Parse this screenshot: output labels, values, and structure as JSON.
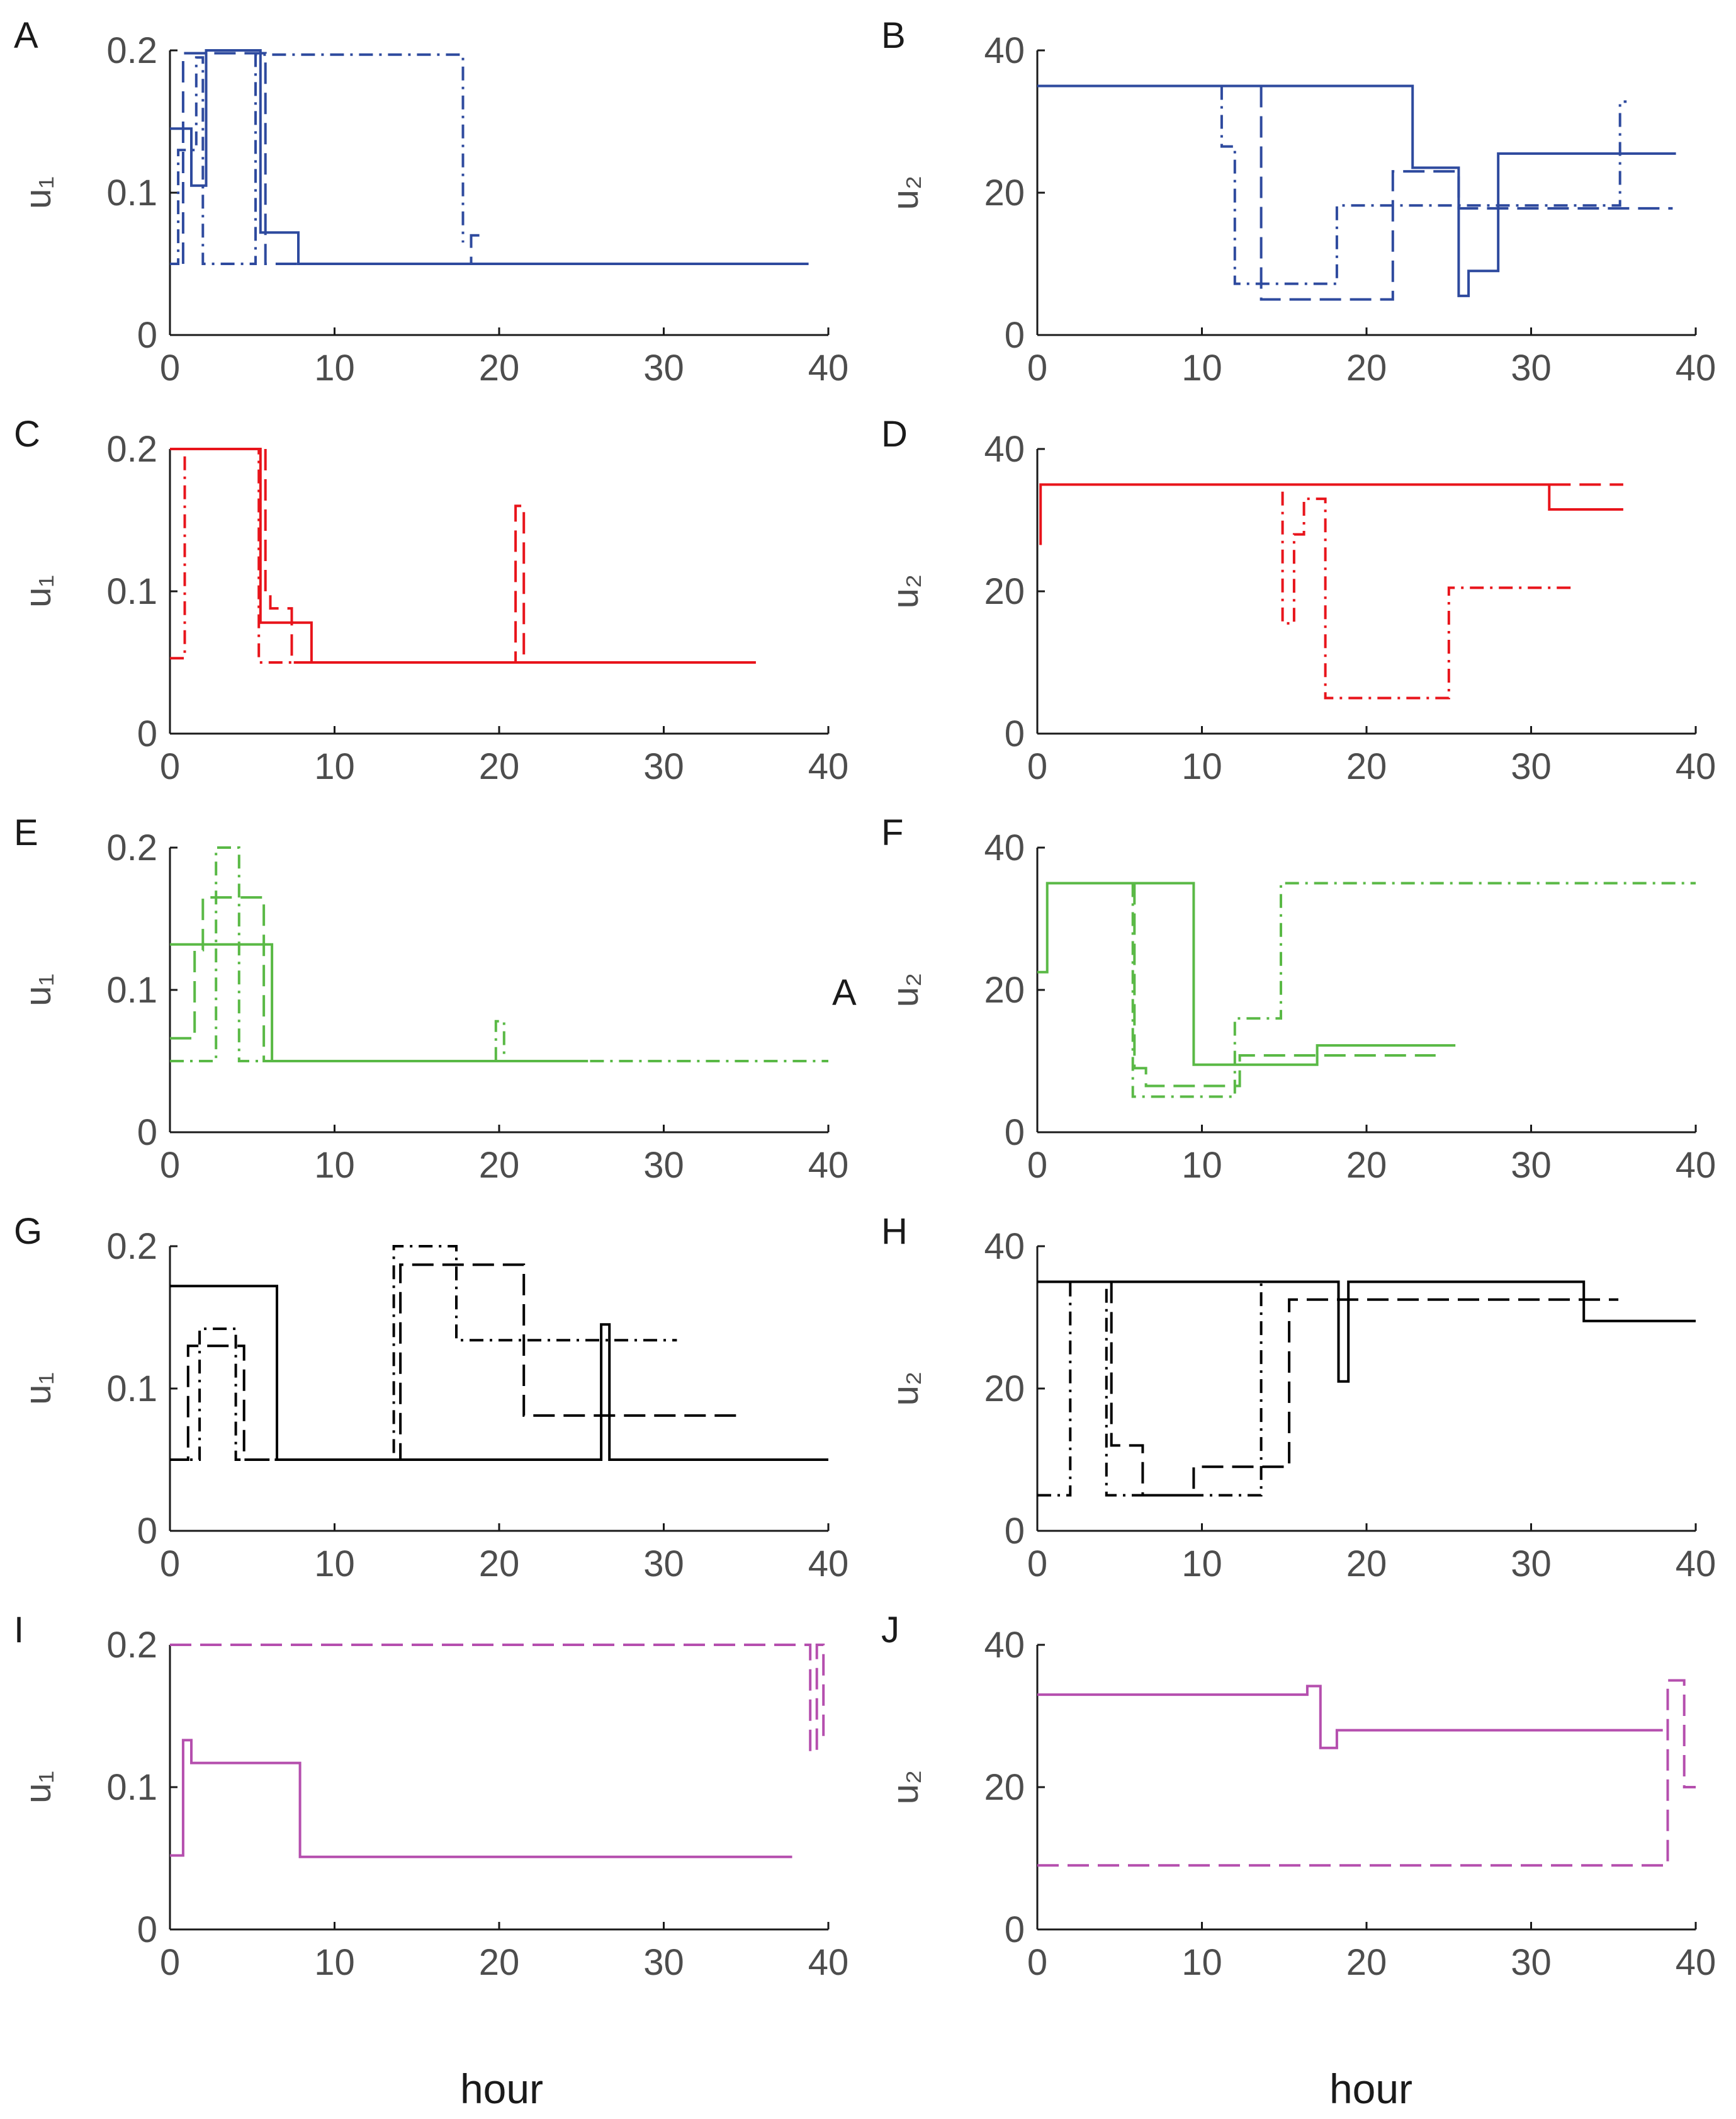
{
  "figure": {
    "xlabel_left": "hour",
    "xlabel_right": "hour",
    "stray_label": "A"
  },
  "chart_data": [
    {
      "panel": "A",
      "type": "line",
      "step": true,
      "color": "#2e4a9e",
      "xlim": [
        0,
        40
      ],
      "ylim": [
        0,
        0.2
      ],
      "xticks": [
        "0",
        "10",
        "20",
        "30",
        "40"
      ],
      "yticks": [
        "0",
        "0.1",
        "0.2"
      ],
      "ylabel": "u₁",
      "xlabel": "",
      "series": [
        {
          "name": "solid",
          "dash": "solid",
          "x": [
            0,
            1.3,
            1.3,
            2.2,
            2.2,
            5.5,
            5.5,
            7.8,
            7.8,
            38.8
          ],
          "y": [
            0.145,
            0.145,
            0.105,
            0.105,
            0.2,
            0.2,
            0.072,
            0.072,
            0.05,
            0.05
          ]
        },
        {
          "name": "dashed",
          "dash": "dashed",
          "x": [
            0.8,
            0.8,
            5.8,
            5.8,
            18.3,
            18.3,
            18.8
          ],
          "y": [
            0.05,
            0.198,
            0.198,
            0.05,
            0.05,
            0.07,
            0.07
          ]
        },
        {
          "name": "dash-dot",
          "dash": "dashdot",
          "x": [
            0,
            0.5,
            0.5,
            1.6,
            1.6,
            2.0,
            2.0,
            5.2,
            5.2,
            17.8,
            17.8
          ],
          "y": [
            0.05,
            0.05,
            0.13,
            0.13,
            0.195,
            0.195,
            0.05,
            0.05,
            0.197,
            0.197,
            0.065
          ]
        }
      ]
    },
    {
      "panel": "B",
      "type": "line",
      "step": true,
      "color": "#2e4a9e",
      "xlim": [
        0,
        40
      ],
      "ylim": [
        0,
        40
      ],
      "xticks": [
        "0",
        "10",
        "20",
        "30",
        "40"
      ],
      "yticks": [
        "0",
        "20",
        "40"
      ],
      "ylabel": "u₂",
      "xlabel": "",
      "series": [
        {
          "name": "solid",
          "dash": "solid",
          "x": [
            0,
            22.8,
            22.8,
            25.6,
            25.6,
            26.2,
            26.2,
            28.0,
            28.0,
            38.8
          ],
          "y": [
            35,
            35,
            23.5,
            23.5,
            5.5,
            5.5,
            9,
            9,
            25.5,
            25.5
          ]
        },
        {
          "name": "dashed",
          "dash": "dashed",
          "x": [
            13.6,
            13.6,
            21.6,
            21.6,
            25.6,
            25.6,
            38.6
          ],
          "y": [
            35,
            5,
            5,
            23,
            23,
            17.8,
            17.8
          ]
        },
        {
          "name": "dash-dot",
          "dash": "dashdot",
          "x": [
            11.2,
            11.2,
            12.0,
            12.0,
            18.2,
            18.2,
            35.4,
            35.4,
            35.8
          ],
          "y": [
            35,
            26.5,
            26.5,
            7.2,
            7.2,
            18.2,
            18.2,
            32.8,
            32.8
          ]
        }
      ]
    },
    {
      "panel": "C",
      "type": "line",
      "step": true,
      "color": "#e8141b",
      "xlim": [
        0,
        40
      ],
      "ylim": [
        0,
        0.2
      ],
      "xticks": [
        "0",
        "10",
        "20",
        "30",
        "40"
      ],
      "yticks": [
        "0",
        "0.1",
        "0.2"
      ],
      "ylabel": "u₁",
      "xlabel": "",
      "series": [
        {
          "name": "solid",
          "dash": "solid",
          "x": [
            0,
            5.5,
            5.5,
            8.6,
            8.6,
            35.6
          ],
          "y": [
            0.2,
            0.2,
            0.078,
            0.078,
            0.05,
            0.05
          ]
        },
        {
          "name": "dashed",
          "dash": "dashed",
          "x": [
            5.8,
            5.8,
            6.1,
            6.1,
            7.4,
            7.4,
            21.0,
            21.0,
            21.5,
            21.5
          ],
          "y": [
            0.2,
            0.1,
            0.1,
            0.088,
            0.088,
            0.05,
            0.05,
            0.16,
            0.16,
            0.05
          ]
        },
        {
          "name": "dash-dot",
          "dash": "dashdot",
          "x": [
            0,
            0.9,
            0.9,
            5.4,
            5.4,
            21.0
          ],
          "y": [
            0.053,
            0.053,
            0.2,
            0.2,
            0.05,
            0.05
          ]
        }
      ]
    },
    {
      "panel": "D",
      "type": "line",
      "step": true,
      "color": "#e8141b",
      "xlim": [
        0,
        40
      ],
      "ylim": [
        0,
        40
      ],
      "xticks": [
        "0",
        "10",
        "20",
        "30",
        "40"
      ],
      "yticks": [
        "0",
        "20",
        "40"
      ],
      "ylabel": "u₂",
      "xlabel": "",
      "series": [
        {
          "name": "solid",
          "dash": "solid",
          "x": [
            0.2,
            0.2,
            31.1,
            31.1,
            35.6
          ],
          "y": [
            26.5,
            35,
            35,
            31.5,
            31.5
          ]
        },
        {
          "name": "dashed",
          "dash": "dashed",
          "x": [
            31.1,
            35.6
          ],
          "y": [
            35,
            35
          ]
        },
        {
          "name": "dash-dot",
          "dash": "dashdot",
          "x": [
            14.9,
            14.9,
            15.6,
            15.6,
            16.2,
            16.2,
            17.5,
            17.5,
            25.0,
            25.0,
            32.6
          ],
          "y": [
            34,
            15.5,
            15.5,
            28,
            28,
            33,
            33,
            5,
            5,
            20.5,
            20.5
          ]
        }
      ]
    },
    {
      "panel": "E",
      "type": "line",
      "step": true,
      "color": "#5ab946",
      "xlim": [
        0,
        40
      ],
      "ylim": [
        0,
        0.2
      ],
      "xticks": [
        "0",
        "10",
        "20",
        "30",
        "40"
      ],
      "yticks": [
        "0",
        "0.1",
        "0.2"
      ],
      "ylabel": "u₁",
      "xlabel": "",
      "series": [
        {
          "name": "solid",
          "dash": "solid",
          "x": [
            0,
            6.2,
            6.2,
            25.4
          ],
          "y": [
            0.132,
            0.132,
            0.05,
            0.05
          ]
        },
        {
          "name": "dashed",
          "dash": "dashed",
          "x": [
            0,
            1.5,
            1.5,
            2.0,
            2.0,
            5.7,
            5.7,
            20.6
          ],
          "y": [
            0.066,
            0.066,
            0.128,
            0.128,
            0.165,
            0.165,
            0.05,
            0.05
          ]
        },
        {
          "name": "dash-dot",
          "dash": "dashdot",
          "x": [
            0,
            2.8,
            2.8,
            4.2,
            4.2,
            19.8,
            19.8,
            20.3,
            20.3,
            40
          ],
          "y": [
            0.05,
            0.05,
            0.2,
            0.2,
            0.05,
            0.05,
            0.078,
            0.078,
            0.05,
            0.05
          ]
        }
      ]
    },
    {
      "panel": "F",
      "type": "line",
      "step": true,
      "color": "#5ab946",
      "xlim": [
        0,
        40
      ],
      "ylim": [
        0,
        40
      ],
      "xticks": [
        "0",
        "10",
        "20",
        "30",
        "40"
      ],
      "yticks": [
        "0",
        "20",
        "40"
      ],
      "ylabel": "u₂",
      "xlabel": "",
      "series": [
        {
          "name": "solid",
          "dash": "solid",
          "x": [
            0,
            0.6,
            0.6,
            9.5,
            9.5,
            17.0,
            17.0,
            25.4
          ],
          "y": [
            22.5,
            22.5,
            35,
            35,
            9.5,
            9.5,
            12.2,
            12.2
          ]
        },
        {
          "name": "dashed",
          "dash": "dashed",
          "x": [
            5.9,
            5.9,
            6.6,
            6.6,
            12.3,
            12.3,
            24.2
          ],
          "y": [
            35,
            9,
            9,
            6.5,
            6.5,
            10.8,
            10.8
          ]
        },
        {
          "name": "dash-dot",
          "dash": "dashdot",
          "x": [
            5.8,
            5.8,
            12.0,
            12.0,
            14.8,
            14.8,
            40
          ],
          "y": [
            35,
            5,
            5,
            16,
            16,
            35,
            35
          ]
        }
      ]
    },
    {
      "panel": "G",
      "type": "line",
      "step": true,
      "color": "#000000",
      "xlim": [
        0,
        40
      ],
      "ylim": [
        0,
        0.2
      ],
      "xticks": [
        "0",
        "10",
        "20",
        "30",
        "40"
      ],
      "yticks": [
        "0",
        "0.1",
        "0.2"
      ],
      "ylabel": "u₁",
      "xlabel": "",
      "series": [
        {
          "name": "solid",
          "dash": "solid",
          "x": [
            0,
            6.5,
            6.5,
            26.2,
            26.2,
            26.7,
            26.7,
            40
          ],
          "y": [
            0.172,
            0.172,
            0.05,
            0.05,
            0.145,
            0.145,
            0.05,
            0.05
          ]
        },
        {
          "name": "dashed",
          "dash": "dashed",
          "x": [
            0,
            1.1,
            1.1,
            4.5,
            4.5,
            14.0,
            14.0,
            21.5,
            21.5,
            34.5
          ],
          "y": [
            0.05,
            0.05,
            0.13,
            0.13,
            0.05,
            0.05,
            0.187,
            0.187,
            0.081,
            0.081
          ]
        },
        {
          "name": "dash-dot",
          "dash": "dashdot",
          "x": [
            0,
            1.8,
            1.8,
            4.0,
            4.0,
            13.6,
            13.6,
            17.4,
            17.4,
            30.8
          ],
          "y": [
            0.05,
            0.05,
            0.142,
            0.142,
            0.05,
            0.05,
            0.2,
            0.2,
            0.134,
            0.134
          ]
        }
      ]
    },
    {
      "panel": "H",
      "type": "line",
      "step": true,
      "color": "#000000",
      "xlim": [
        0,
        40
      ],
      "ylim": [
        0,
        40
      ],
      "xticks": [
        "0",
        "10",
        "20",
        "30",
        "40"
      ],
      "yticks": [
        "0",
        "20",
        "40"
      ],
      "ylabel": "u₂",
      "xlabel": "",
      "series": [
        {
          "name": "solid",
          "dash": "solid",
          "x": [
            0,
            18.3,
            18.3,
            18.9,
            18.9,
            33.2,
            33.2,
            40
          ],
          "y": [
            35,
            35,
            21,
            21,
            35,
            35,
            29.5,
            29.5
          ]
        },
        {
          "name": "dashed",
          "dash": "dashed",
          "x": [
            4.5,
            4.5,
            6.4,
            6.4,
            9.5,
            9.5,
            15.3,
            15.3,
            35.3
          ],
          "y": [
            35,
            12,
            12,
            5,
            5,
            9,
            9,
            32.5,
            32.5
          ]
        },
        {
          "name": "dash-dot",
          "dash": "dashdot",
          "x": [
            0,
            2.0,
            2.0,
            4.2,
            4.2,
            13.6,
            13.6
          ],
          "y": [
            5,
            5,
            35,
            35,
            5,
            5,
            35
          ]
        }
      ]
    },
    {
      "panel": "I",
      "type": "line",
      "step": true,
      "color": "#b54fae",
      "xlim": [
        0,
        40
      ],
      "ylim": [
        0,
        0.2
      ],
      "xticks": [
        "0",
        "10",
        "20",
        "30",
        "40"
      ],
      "yticks": [
        "0",
        "0.1",
        "0.2"
      ],
      "ylabel": "u₁",
      "xlabel": "",
      "series": [
        {
          "name": "solid",
          "dash": "solid",
          "x": [
            0,
            0.8,
            0.8,
            1.3,
            1.3,
            7.9,
            7.9,
            37.8
          ],
          "y": [
            0.052,
            0.052,
            0.133,
            0.133,
            0.117,
            0.117,
            0.051,
            0.051
          ]
        },
        {
          "name": "dashed",
          "dash": "dashed",
          "x": [
            0,
            38.9,
            38.9,
            39.3,
            39.3,
            39.7,
            39.7,
            40
          ],
          "y": [
            0.2,
            0.2,
            0.125,
            0.125,
            0.2,
            0.2,
            0.135,
            0.135
          ]
        }
      ]
    },
    {
      "panel": "J",
      "type": "line",
      "step": true,
      "color": "#b54fae",
      "xlim": [
        0,
        40
      ],
      "ylim": [
        0,
        40
      ],
      "xticks": [
        "0",
        "10",
        "20",
        "30",
        "40"
      ],
      "yticks": [
        "0",
        "20",
        "40"
      ],
      "ylabel": "u₂",
      "xlabel": "",
      "series": [
        {
          "name": "solid",
          "dash": "solid",
          "x": [
            0,
            16.4,
            16.4,
            17.2,
            17.2,
            18.2,
            18.2,
            38.0
          ],
          "y": [
            33,
            33,
            34.2,
            34.2,
            25.5,
            25.5,
            28,
            28
          ]
        },
        {
          "name": "dashed",
          "dash": "dashed",
          "x": [
            0,
            38.3,
            38.3,
            39.3,
            39.3,
            40
          ],
          "y": [
            9,
            9,
            35,
            35,
            20,
            20
          ]
        }
      ]
    }
  ]
}
